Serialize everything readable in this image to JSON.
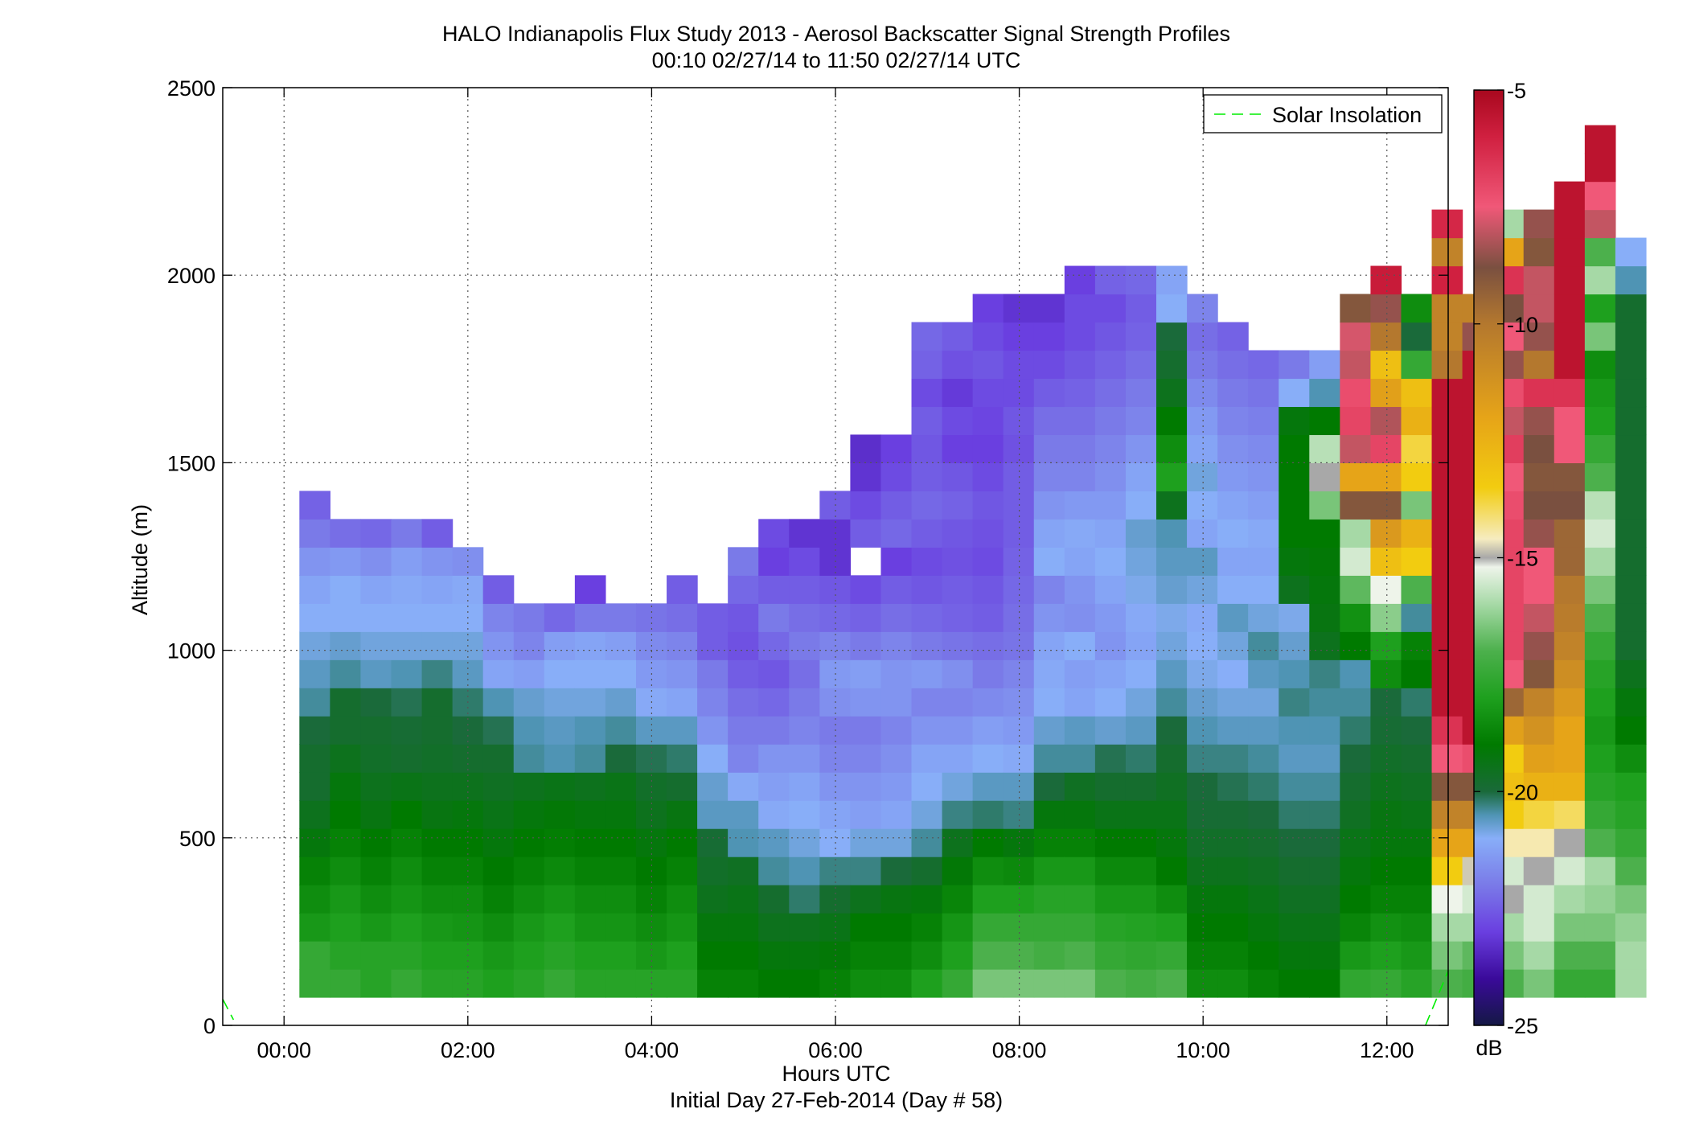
{
  "chart_data": {
    "type": "heatmap",
    "title": "HALO Indianapolis Flux Study 2013 - Aerosol Backscatter Signal Strength Profiles",
    "subtitle": "00:10 02/27/14 to 11:50 02/27/14  UTC",
    "xlabel": "Hours UTC",
    "xlabel2": "Initial Day 27-Feb-2014 (Day # 58)",
    "ylabel": "Altitude (m)",
    "xlim": [
      -0.667,
      12.667
    ],
    "ylim": [
      0,
      2500
    ],
    "x_ticks": [
      0,
      2,
      4,
      6,
      8,
      10,
      12
    ],
    "x_tick_labels": [
      "00:00",
      "02:00",
      "04:00",
      "06:00",
      "08:00",
      "10:00",
      "12:00"
    ],
    "y_ticks": [
      0,
      500,
      1000,
      1500,
      2000,
      2500
    ],
    "y_tick_labels": [
      "0",
      "500",
      "1000",
      "1500",
      "2000",
      "2500"
    ],
    "grid": true,
    "legend": {
      "position": "top-right",
      "entries": [
        {
          "label": "Solar Insolation",
          "color": "#00ee00",
          "style": "dashed"
        }
      ]
    },
    "colorbar": {
      "label": "dB",
      "range": [
        -25,
        -5
      ],
      "ticks": [
        -5,
        -10,
        -15,
        -20,
        -25
      ],
      "tick_labels": [
        "-5",
        "-10",
        "-15",
        "-20",
        "-25"
      ],
      "stops": [
        {
          "v": -25,
          "c": "#141845"
        },
        {
          "v": -24,
          "c": "#3a0a9a"
        },
        {
          "v": -23,
          "c": "#6a3fe0"
        },
        {
          "v": -22,
          "c": "#7a7ae8"
        },
        {
          "v": -21,
          "c": "#88aef8"
        },
        {
          "v": -20.5,
          "c": "#4f94b4"
        },
        {
          "v": -20,
          "c": "#1a6a3a"
        },
        {
          "v": -19,
          "c": "#007a00"
        },
        {
          "v": -18,
          "c": "#1ea01e"
        },
        {
          "v": -17,
          "c": "#4cb04c"
        },
        {
          "v": -16,
          "c": "#a6d9a6"
        },
        {
          "v": -15.2,
          "c": "#eef4ea"
        },
        {
          "v": -15,
          "c": "#a8a8a8"
        },
        {
          "v": -14.6,
          "c": "#f6ecc0"
        },
        {
          "v": -13.5,
          "c": "#f2cc10"
        },
        {
          "v": -12,
          "c": "#e6a418"
        },
        {
          "v": -10,
          "c": "#b4782e"
        },
        {
          "v": -8.8,
          "c": "#7a5040"
        },
        {
          "v": -7.5,
          "c": "#f05878"
        },
        {
          "v": -6,
          "c": "#d02040"
        },
        {
          "v": -5,
          "c": "#a8081e"
        }
      ]
    },
    "time_start_hours": 0.167,
    "time_step_hours": 0.333,
    "alt_start_m": 75,
    "alt_step_m": 75,
    "columns": [
      [
        -17.5,
        -17.5,
        -18.2,
        -18.5,
        -18.8,
        -19.2,
        -19.5,
        -19.8,
        -19.8,
        -20.0,
        -20.4,
        -20.6,
        -20.8,
        -21.0,
        -21.2,
        -21.5,
        -22.0,
        -22.4
      ],
      [
        -17.5,
        -17.8,
        -18.0,
        -18.2,
        -18.5,
        -18.8,
        -19.0,
        -19.2,
        -19.5,
        -19.8,
        -19.8,
        -20.4,
        -20.7,
        -21.0,
        -21.0,
        -21.4,
        -22.2
      ],
      [
        -17.8,
        -17.8,
        -18.2,
        -18.5,
        -18.8,
        -19.0,
        -19.3,
        -19.5,
        -19.7,
        -19.8,
        -20.0,
        -20.6,
        -20.8,
        -21.0,
        -21.2,
        -21.6,
        -22.3
      ],
      [
        -17.5,
        -17.8,
        -18.0,
        -18.3,
        -18.5,
        -18.8,
        -19.0,
        -19.4,
        -19.8,
        -19.9,
        -20.1,
        -20.5,
        -20.8,
        -21.0,
        -21.1,
        -21.3,
        -22.0
      ],
      [
        -17.8,
        -18.0,
        -18.2,
        -18.5,
        -18.8,
        -19.0,
        -19.3,
        -19.5,
        -19.7,
        -19.8,
        -19.8,
        -20.3,
        -20.8,
        -21.0,
        -21.2,
        -21.5,
        -22.5
      ],
      [
        -17.8,
        -18.0,
        -18.3,
        -18.5,
        -18.8,
        -19.0,
        -19.2,
        -19.5,
        -19.8,
        -20.0,
        -20.2,
        -20.6,
        -20.8,
        -21.0,
        -21.1,
        -21.6
      ],
      [
        -18.0,
        -18.2,
        -18.5,
        -18.8,
        -19.0,
        -19.2,
        -19.4,
        -19.6,
        -19.8,
        -20.1,
        -20.5,
        -21.2,
        -21.5,
        -21.8,
        -22.5
      ],
      [
        -17.8,
        -18.0,
        -18.2,
        -18.5,
        -18.8,
        -19.0,
        -19.2,
        -19.5,
        -20.4,
        -20.5,
        -20.7,
        -21.3,
        -21.8,
        -22.0
      ],
      [
        -17.5,
        -17.8,
        -18.0,
        -18.3,
        -18.6,
        -18.9,
        -19.1,
        -19.4,
        -20.5,
        -20.6,
        -20.8,
        -21.0,
        -21.3,
        -22.3
      ],
      [
        -17.8,
        -18.0,
        -18.3,
        -18.5,
        -18.8,
        -19.0,
        -19.2,
        -19.5,
        -20.4,
        -20.5,
        -20.8,
        -21.0,
        -21.2,
        -22.0,
        -23.0
      ],
      [
        -17.8,
        -18.0,
        -18.3,
        -18.5,
        -18.8,
        -19.0,
        -19.2,
        -19.4,
        -20.0,
        -20.4,
        -20.7,
        -21.0,
        -21.3,
        -22.0
      ],
      [
        -17.8,
        -18.2,
        -18.5,
        -18.8,
        -19.0,
        -19.2,
        -19.5,
        -19.7,
        -20.1,
        -20.6,
        -21.1,
        -21.4,
        -21.7,
        -22.1
      ],
      [
        -17.8,
        -18.0,
        -18.3,
        -18.5,
        -18.8,
        -19.0,
        -19.3,
        -19.8,
        -20.2,
        -20.6,
        -21.2,
        -21.5,
        -21.8,
        -22.2,
        -22.5
      ],
      [
        -18.8,
        -19.0,
        -19.2,
        -19.5,
        -19.7,
        -19.9,
        -20.6,
        -20.7,
        -21.0,
        -21.5,
        -21.8,
        -22.0,
        -22.5,
        -22.5
      ],
      [
        -18.8,
        -19.0,
        -19.2,
        -19.4,
        -19.6,
        -20.5,
        -20.6,
        -21.1,
        -21.8,
        -22.0,
        -22.2,
        -22.5,
        -22.7,
        -22.6,
        -22.3,
        -22.0
      ],
      [
        -19.0,
        -19.2,
        -19.5,
        -19.8,
        -20.4,
        -20.6,
        -21.1,
        -21.3,
        -21.5,
        -22.0,
        -22.3,
        -22.6,
        -22.3,
        -22.0,
        -22.5,
        -23.0,
        -22.8
      ],
      [
        -19.0,
        -19.2,
        -19.5,
        -20.2,
        -20.5,
        -20.8,
        -21.0,
        -21.2,
        -21.5,
        -21.8,
        -22.0,
        -22.2,
        -22.0,
        -22.2,
        -22.5,
        -22.8,
        -23.2
      ],
      [
        -18.8,
        -19.1,
        -19.4,
        -19.8,
        -20.3,
        -21.0,
        -21.2,
        -21.5,
        -21.8,
        -22.0,
        -21.6,
        -21.4,
        -21.8,
        -22.3,
        -22.6,
        -23.2,
        -23.2,
        -22.5
      ],
      [
        -18.5,
        -18.8,
        -19.0,
        -19.5,
        -20.3,
        -20.8,
        -21.3,
        -21.5,
        -21.8,
        -22.0,
        -21.5,
        -21.3,
        -22.0,
        -22.4,
        -22.8,
        null,
        -22.5,
        -22.8,
        -23.2,
        -23.3
      ],
      [
        -18.5,
        -18.8,
        -19.0,
        -19.3,
        -20.0,
        -20.8,
        -21.2,
        -21.4,
        -21.6,
        -21.8,
        -21.5,
        -21.5,
        -21.8,
        -22.2,
        -22.5,
        -23.0,
        -22.3,
        -22.5,
        -22.8,
        -23.0
      ],
      [
        -18.0,
        -18.5,
        -18.8,
        -19.2,
        -19.8,
        -20.4,
        -20.8,
        -21.0,
        -21.2,
        -21.5,
        -21.8,
        -21.4,
        -22.0,
        -22.3,
        -22.6,
        -22.8,
        -22.5,
        -22.3,
        -22.5,
        -22.6,
        -22.5,
        -22.8,
        -22.4,
        -22.3
      ],
      [
        -17.5,
        -18.0,
        -18.3,
        -18.7,
        -19.1,
        -19.5,
        -20.3,
        -20.8,
        -21.2,
        -21.5,
        -21.8,
        -21.6,
        -22.1,
        -22.4,
        -22.5,
        -22.7,
        -22.6,
        -22.4,
        -22.6,
        -23.0,
        -22.8,
        -23.1,
        -22.7,
        -22.5
      ],
      [
        -16.5,
        -17.0,
        -17.5,
        -18.0,
        -18.5,
        -19.0,
        -20.2,
        -20.6,
        -21.0,
        -21.3,
        -21.7,
        -22.0,
        -22.2,
        -22.5,
        -22.6,
        -22.8,
        -22.7,
        -22.6,
        -22.8,
        -23.0,
        -22.9,
        -22.8,
        -22.6,
        -22.8,
        -23.0
      ],
      [
        -16.5,
        -17.0,
        -17.5,
        -18.0,
        -18.6,
        -19.2,
        -20.3,
        -20.6,
        -21.1,
        -21.4,
        -21.6,
        -21.8,
        -22.1,
        -22.2,
        -22.3,
        -22.4,
        -22.5,
        -22.5,
        -22.5,
        -22.7,
        -22.6,
        -22.8,
        -22.8,
        -23.0,
        -23.2
      ],
      [
        -16.5,
        -17.2,
        -17.5,
        -17.8,
        -18.2,
        -18.8,
        -19.2,
        -20.0,
        -20.4,
        -20.7,
        -21.0,
        -21.1,
        -21.2,
        -21.5,
        -21.8,
        -21.0,
        -21.2,
        -21.5,
        -21.8,
        -22.0,
        -22.2,
        -22.5,
        -22.8,
        -23.0,
        -23.2
      ],
      [
        -16.5,
        -17.0,
        -17.5,
        -17.8,
        -18.2,
        -18.8,
        -19.2,
        -19.6,
        -20.4,
        -20.6,
        -21.2,
        -21.3,
        -21.0,
        -21.6,
        -21.5,
        -21.2,
        -21.1,
        -21.4,
        -21.8,
        -22.0,
        -22.2,
        -22.4,
        -22.6,
        -22.8,
        -22.8,
        -23.0
      ],
      [
        -17.0,
        -17.5,
        -17.8,
        -18.2,
        -18.6,
        -19.0,
        -19.4,
        -19.8,
        -20.1,
        -20.7,
        -21.0,
        -21.2,
        -21.5,
        -21.4,
        -21.2,
        -21.0,
        -21.2,
        -21.4,
        -21.6,
        -21.8,
        -22.0,
        -22.2,
        -22.4,
        -22.6,
        -22.8,
        -22.4
      ],
      [
        -17.2,
        -17.6,
        -17.9,
        -18.2,
        -18.6,
        -19.0,
        -19.4,
        -19.8,
        -20.2,
        -20.6,
        -20.8,
        -21.0,
        -21.2,
        -21.1,
        -20.9,
        -20.8,
        -20.7,
        -21.0,
        -21.2,
        -21.5,
        -21.8,
        -22.0,
        -22.2,
        -22.4,
        -22.5,
        -22.3
      ],
      [
        -17.0,
        -17.5,
        -18.0,
        -18.5,
        -19.0,
        -19.2,
        -19.4,
        -19.6,
        -19.8,
        -20.0,
        -20.4,
        -20.6,
        -20.8,
        -20.9,
        -20.7,
        -20.6,
        -20.5,
        -19.5,
        -18.0,
        -18.5,
        -19.0,
        -19.5,
        -19.8,
        -20.0,
        -21.0,
        -21.2
      ],
      [
        -18.5,
        -18.8,
        -19.0,
        -19.2,
        -19.5,
        -19.7,
        -19.9,
        -20.0,
        -20.3,
        -20.5,
        -20.7,
        -20.9,
        -21.0,
        -21.1,
        -20.8,
        -20.6,
        -21.2,
        -21.0,
        -20.8,
        -21.2,
        -21.4,
        -21.7,
        -22.0,
        -22.2,
        -21.8
      ],
      [
        -18.5,
        -18.8,
        -19.0,
        -19.2,
        -19.5,
        -19.7,
        -19.9,
        -20.1,
        -20.3,
        -20.6,
        -20.8,
        -21.0,
        -20.8,
        -20.6,
        -21.0,
        -21.2,
        -21.0,
        -21.2,
        -21.4,
        -21.6,
        -21.8,
        -22.0,
        -22.2,
        -22.4
      ],
      [
        -18.8,
        -19.0,
        -19.2,
        -19.4,
        -19.6,
        -19.8,
        -20.0,
        -20.2,
        -20.4,
        -20.6,
        -20.8,
        -20.6,
        -20.4,
        -20.8,
        -21.0,
        -21.2,
        -21.1,
        -21.3,
        -21.5,
        -21.7,
        -21.9,
        -22.1,
        -22.3
      ],
      [
        -19.0,
        -19.2,
        -19.4,
        -19.6,
        -19.8,
        -20.0,
        -20.2,
        -20.4,
        -20.6,
        -20.5,
        -20.3,
        -20.5,
        -20.7,
        -20.9,
        -19.5,
        -19.2,
        -19.0,
        -19.0,
        -19.0,
        -19.0,
        -19.2,
        -21.0,
        -22.0
      ],
      [
        -19.0,
        -19.2,
        -19.4,
        -19.6,
        -19.8,
        -20.0,
        -20.2,
        -20.4,
        -20.6,
        -20.5,
        -20.4,
        -20.3,
        -19.5,
        -19.3,
        -19.2,
        -19.1,
        -19.0,
        -16.5,
        -15.0,
        -15.8,
        -19.0,
        -20.5,
        -21.3
      ],
      [
        -17.6,
        -18.2,
        -18.7,
        -19.0,
        -19.2,
        -19.4,
        -19.6,
        -19.8,
        -20.0,
        -20.2,
        -20.4,
        -20.5,
        -19.0,
        -18.4,
        -16.8,
        -15.5,
        -16.0,
        -9.0,
        -12.0,
        -8.0,
        -7.0,
        -7.2,
        -8.0,
        -7.8,
        -9.0
      ],
      [
        -17.5,
        -18.0,
        -18.4,
        -18.8,
        -19.0,
        -19.2,
        -19.3,
        -19.5,
        -19.7,
        -19.9,
        -20.0,
        -18.5,
        -18.0,
        -16.3,
        -15.2,
        -13.0,
        -11.5,
        -9.0,
        -12.0,
        -7.0,
        -8.2,
        -11.8,
        -13.0,
        -10.0,
        -8.5,
        -5.8
      ],
      [
        -17.8,
        -18.2,
        -18.5,
        -18.8,
        -19.0,
        -19.2,
        -19.4,
        -19.6,
        -19.8,
        -20.0,
        -20.2,
        -19.0,
        -18.8,
        -20.4,
        -17.0,
        -13.5,
        -12.5,
        -16.5,
        -13.5,
        -13.8,
        -12.5,
        -13.0,
        -17.5,
        -20.0,
        -18.5
      ],
      [
        -17.0,
        -16.5,
        -16.0,
        -15.2,
        -13.5,
        -12.0,
        -10.5,
        -9.0,
        -7.5,
        -6.5,
        -5.5,
        -5.5,
        -5.5,
        -5.5,
        -5.5,
        -5.5,
        -5.5,
        -5.5,
        -5.5,
        -5.5,
        -5.5,
        -5.5,
        -10.0,
        -10.5,
        -10.5,
        -6.0,
        -10.5,
        -6.2
      ],
      [
        -17.2,
        -16.8,
        -16.0,
        -15.5,
        -14.8,
        -12.0,
        -10.5,
        -9.0,
        -7.2,
        -5.5,
        -5.5,
        -5.5,
        -5.5,
        -5.5,
        -5.5,
        -5.5,
        -5.5,
        -5.5,
        -5.5,
        -5.5,
        -5.5,
        -5.5,
        -5.5,
        -8.5,
        -10.5
      ],
      [
        -17.0,
        -16.5,
        -16.0,
        -15.0,
        -15.5,
        -14.5,
        -13.5,
        -13.0,
        -13.5,
        -11.8,
        -9.5,
        -7.5,
        -7.0,
        -7.0,
        -7.0,
        -7.0,
        -7.0,
        -7.2,
        -7.5,
        -6.8,
        -8.0,
        -7.2,
        -8.5,
        -7.5,
        -8.8,
        -6.5,
        -12.0,
        -16.0
      ],
      [
        -16.5,
        -16.0,
        -15.5,
        -15.5,
        -15.0,
        -14.5,
        -13.8,
        -12.5,
        -11.8,
        -11.2,
        -10.5,
        -9.0,
        -8.5,
        -8.0,
        -7.5,
        -7.5,
        -8.5,
        -8.8,
        -9.0,
        -8.8,
        -8.5,
        -6.5,
        -10.0,
        -8.5,
        -8.0,
        -8.0,
        -9.0,
        -8.5
      ],
      [
        -17.5,
        -17.0,
        -16.5,
        -16.0,
        -15.5,
        -15.0,
        -14.0,
        -12.5,
        -12.0,
        -12.0,
        -11.5,
        -11.0,
        -10.5,
        -10.2,
        -10.0,
        -9.5,
        -9.5,
        -8.8,
        -9.0,
        -7.5,
        -7.5,
        -6.5,
        -5.5,
        -5.5,
        -5.5,
        -5.5,
        -5.5,
        -5.5,
        -5.5
      ],
      [
        -17.5,
        -17.0,
        -16.5,
        -16.2,
        -16.0,
        -17.0,
        -17.5,
        -17.8,
        -18.0,
        -18.2,
        -18.0,
        -17.8,
        -17.5,
        -17.0,
        -16.5,
        -16.0,
        -15.5,
        -15.8,
        -17.0,
        -17.5,
        -18.0,
        -18.2,
        -18.5,
        -16.5,
        -18.0,
        -16.0,
        -17.0,
        -8.0,
        -7.5,
        -5.5,
        -5.5
      ],
      [
        -16.0,
        -16.0,
        -16.2,
        -16.5,
        -17.0,
        -17.5,
        -17.8,
        -18.0,
        -18.5,
        -19.0,
        -19.2,
        -19.5,
        -19.8,
        -19.8,
        -19.8,
        -19.8,
        -19.8,
        -19.8,
        -19.8,
        -19.8,
        -19.8,
        -19.8,
        -19.8,
        -19.8,
        -19.8,
        -20.5,
        -21.0
      ]
    ]
  }
}
